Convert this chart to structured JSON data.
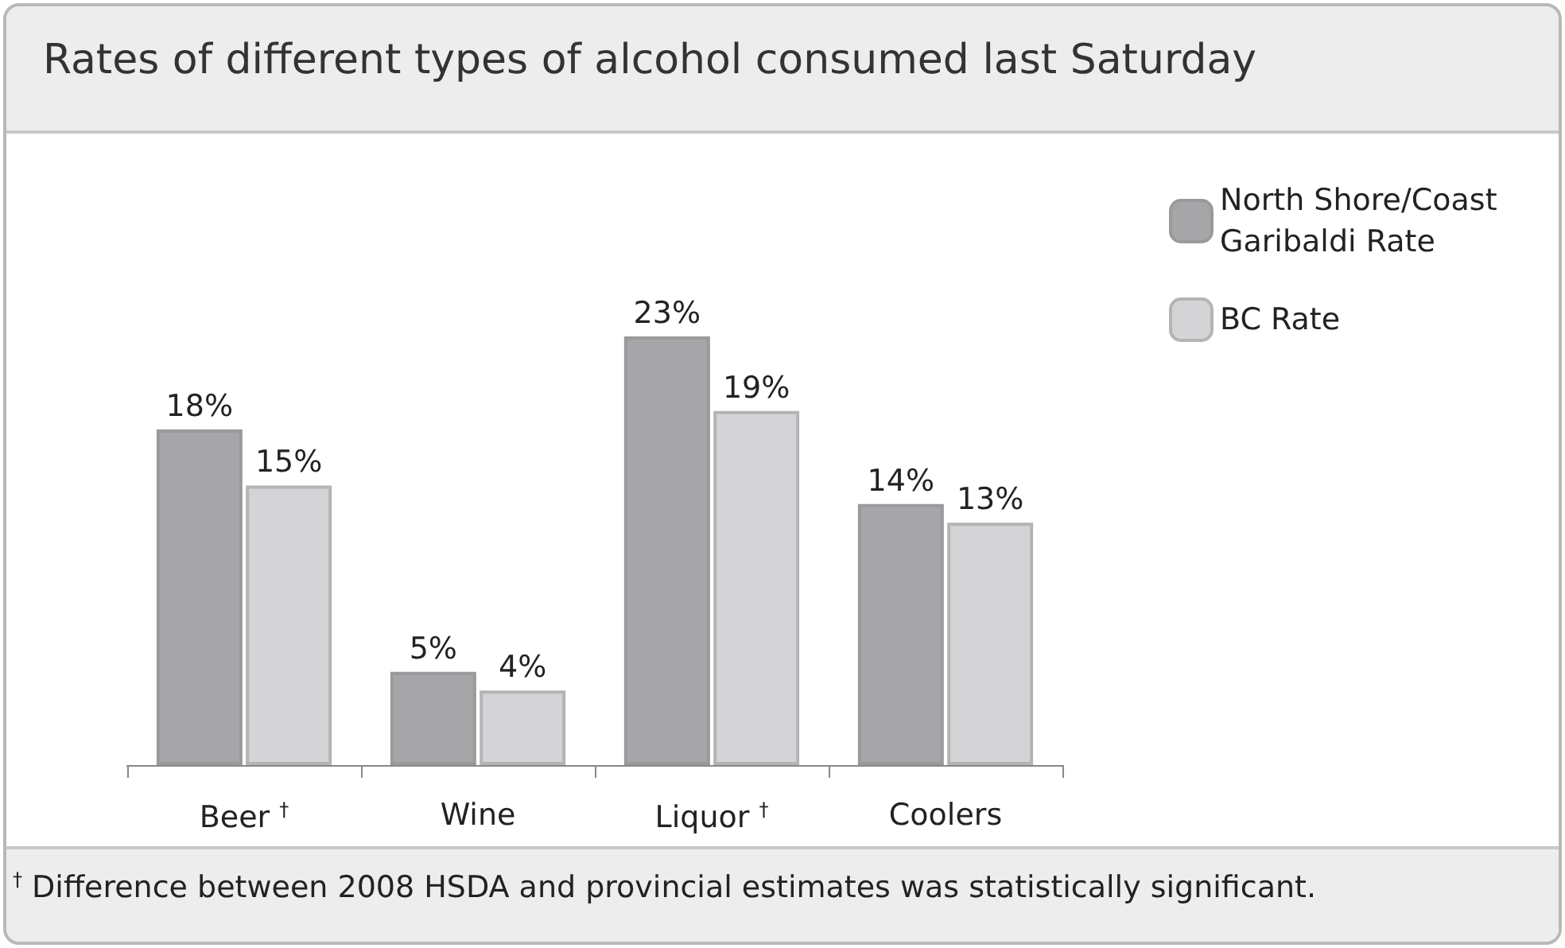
{
  "chart_data": {
    "type": "bar",
    "title": "Rates of different types of alcohol consumed last Saturday",
    "categories": [
      "Beer $^{†}$",
      "Wine",
      "Liquor $^{†}$",
      "Coolers"
    ],
    "series": [
      {
        "name": "North Shore/Coast Garibaldi Rate",
        "color": "#a6a6a9",
        "values": [
          18,
          5,
          23,
          14
        ],
        "value_labels": [
          "18%",
          "5%",
          "23%",
          "14%"
        ]
      },
      {
        "name": "BC Rate",
        "color": "#d4d4d6",
        "values": [
          15,
          4,
          19,
          13
        ],
        "value_labels": [
          "15%",
          "4%",
          "19%",
          "13%"
        ]
      }
    ],
    "annotations": [
      "$^{†}$ Difference between 2008 HSDA and provincial estimates was statistically significant."
    ],
    "legend": "right"
  }
}
